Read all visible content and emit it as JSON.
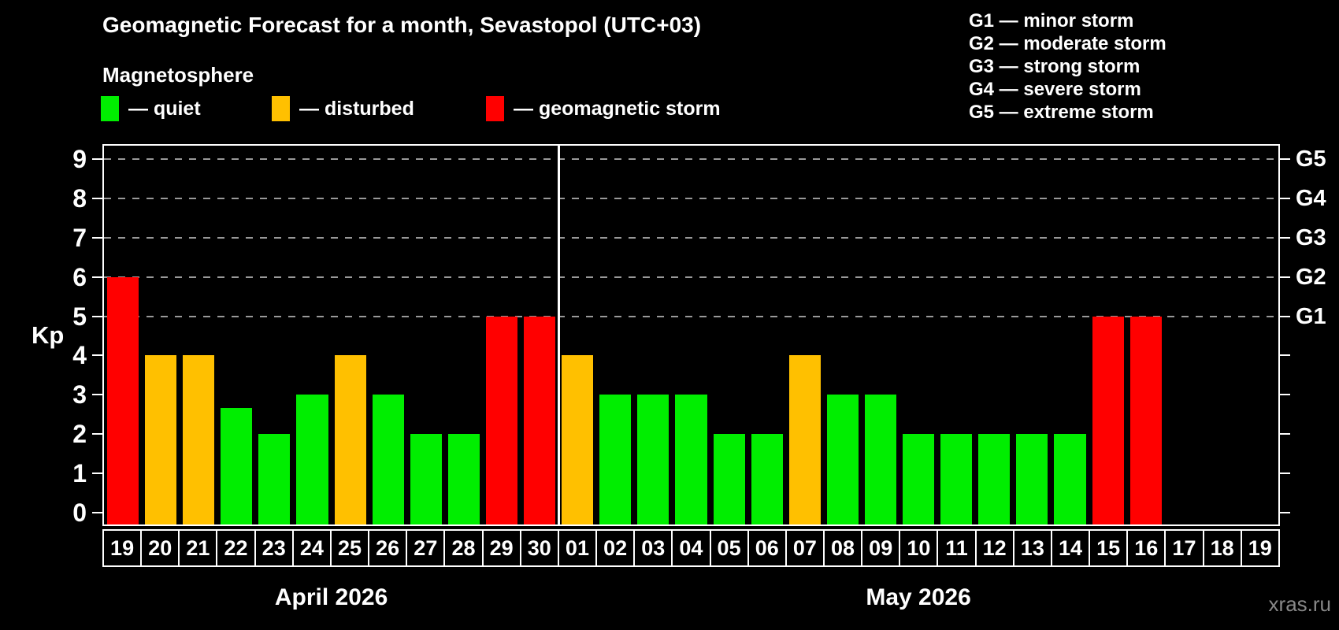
{
  "title": "Geomagnetic Forecast for a month, Sevastopol (UTC+03)",
  "subtitle": "Magnetosphere",
  "legend": {
    "items": [
      {
        "key": "quiet",
        "label": "— quiet",
        "color": "#00ee00"
      },
      {
        "key": "disturbed",
        "label": "— disturbed",
        "color": "#ffc000"
      },
      {
        "key": "storm",
        "label": "— geomagnetic storm",
        "color": "#ff0000"
      }
    ]
  },
  "g_legend": [
    "G1 — minor storm",
    "G2 — moderate storm",
    "G3 — strong storm",
    "G4 — severe storm",
    "G5 — extreme storm"
  ],
  "watermark": "xras.ru",
  "chart_data": {
    "type": "bar",
    "title": "Geomagnetic Forecast for a month, Sevastopol (UTC+03)",
    "ylabel": "Kp",
    "ylim": [
      0,
      9
    ],
    "yticks": [
      0,
      1,
      2,
      3,
      4,
      5,
      6,
      7,
      8,
      9
    ],
    "gridlines_kp": [
      5,
      6,
      7,
      8,
      9
    ],
    "grid": "dashed, only at G-storm levels",
    "legend_position": "top-left swatches; G-scale legend top-right",
    "right_axis": [
      {
        "label": "G1",
        "kp": 5
      },
      {
        "label": "G2",
        "kp": 6
      },
      {
        "label": "G3",
        "kp": 7
      },
      {
        "label": "G4",
        "kp": 8
      },
      {
        "label": "G5",
        "kp": 9
      }
    ],
    "months": [
      {
        "label": "April 2026",
        "days": 12
      },
      {
        "label": "May 2026",
        "days": 19
      }
    ],
    "categories": [
      "19",
      "20",
      "21",
      "22",
      "23",
      "24",
      "25",
      "26",
      "27",
      "28",
      "29",
      "30",
      "01",
      "02",
      "03",
      "04",
      "05",
      "06",
      "07",
      "08",
      "09",
      "10",
      "11",
      "12",
      "13",
      "14",
      "15",
      "16",
      "17",
      "18",
      "19"
    ],
    "values": [
      6,
      4,
      4,
      2.67,
      2,
      3,
      4,
      3,
      2,
      2,
      5,
      5,
      4,
      3,
      3,
      3,
      2,
      2,
      4,
      3,
      3,
      2,
      2,
      2,
      2,
      2,
      5,
      5,
      null,
      null,
      null
    ],
    "statuses": [
      "storm",
      "disturbed",
      "disturbed",
      "quiet",
      "quiet",
      "quiet",
      "disturbed",
      "quiet",
      "quiet",
      "quiet",
      "storm",
      "storm",
      "disturbed",
      "quiet",
      "quiet",
      "quiet",
      "quiet",
      "quiet",
      "disturbed",
      "quiet",
      "quiet",
      "quiet",
      "quiet",
      "quiet",
      "quiet",
      "quiet",
      "storm",
      "storm",
      null,
      null,
      null
    ]
  }
}
